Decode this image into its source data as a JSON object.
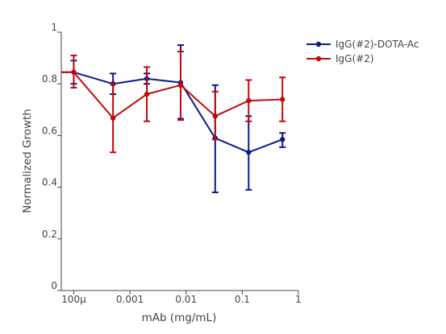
{
  "chart_data": {
    "type": "line",
    "title": "",
    "xlabel": "mAb (mg/mL)",
    "ylabel": "Normalized Growth",
    "x_scale": "log",
    "xlim": [
      6e-05,
      1
    ],
    "ylim": [
      0,
      1
    ],
    "x_ticks": [
      {
        "value": 0.0001,
        "label": "100μ"
      },
      {
        "value": 0.001,
        "label": "0.001"
      },
      {
        "value": 0.01,
        "label": "0.01"
      },
      {
        "value": 0.1,
        "label": "0.1"
      },
      {
        "value": 1,
        "label": "1"
      }
    ],
    "y_ticks": [
      {
        "value": 0,
        "label": "0"
      },
      {
        "value": 0.2,
        "label": "0.2"
      },
      {
        "value": 0.4,
        "label": "0.4"
      },
      {
        "value": 0.6,
        "label": "0.6"
      },
      {
        "value": 0.8,
        "label": "0.8"
      },
      {
        "value": 1,
        "label": "1"
      }
    ],
    "grid": false,
    "legend_position": "top-right",
    "series": [
      {
        "name": "IgG(#2)-DOTA-Ac",
        "color": "#0c1a8c",
        "x": [
          6e-05,
          0.0001,
          0.0005,
          0.002,
          0.008,
          0.033,
          0.13,
          0.52
        ],
        "y": [
          0.845,
          0.845,
          0.8,
          0.82,
          0.805,
          0.59,
          0.535,
          0.585
        ],
        "err_low": [
          null,
          0.8,
          0.76,
          0.8,
          0.665,
          0.38,
          0.39,
          0.555
        ],
        "err_high": [
          null,
          0.89,
          0.84,
          0.84,
          0.95,
          0.795,
          0.675,
          0.61
        ]
      },
      {
        "name": "IgG(#2)",
        "color": "#c00a0a",
        "x": [
          6e-05,
          0.0001,
          0.0005,
          0.002,
          0.008,
          0.033,
          0.13,
          0.52
        ],
        "y": [
          0.845,
          0.845,
          0.668,
          0.76,
          0.795,
          0.675,
          0.735,
          0.74
        ],
        "err_low": [
          null,
          0.785,
          0.535,
          0.655,
          0.66,
          0.585,
          0.655,
          0.655
        ],
        "err_high": [
          null,
          0.91,
          0.8,
          0.865,
          0.925,
          0.77,
          0.815,
          0.825
        ]
      }
    ]
  }
}
